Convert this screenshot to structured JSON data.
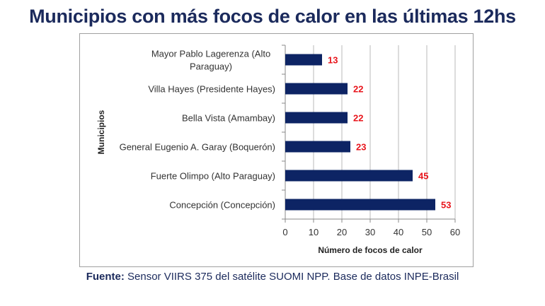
{
  "chart_data": {
    "type": "bar",
    "orientation": "horizontal",
    "title": "Municipios con más focos de calor en las últimas 12hs",
    "categories": [
      "Mayor Pablo Lagerenza (Alto Paraguay)",
      "Villa Hayes (Presidente Hayes)",
      "Bella Vista (Amambay)",
      "General Eugenio A. Garay (Boquerón)",
      "Fuerte Olimpo (Alto Paraguay)",
      "Concepción (Concepción)"
    ],
    "category_lines": [
      [
        "Mayor Pablo Lagerenza (Alto",
        "Paraguay)"
      ],
      [
        "Villa Hayes (Presidente Hayes)"
      ],
      [
        "Bella Vista (Amambay)"
      ],
      [
        "General Eugenio A. Garay (Boquerón)"
      ],
      [
        "Fuerte Olimpo (Alto Paraguay)"
      ],
      [
        "Concepción (Concepción)"
      ]
    ],
    "values": [
      13,
      22,
      22,
      23,
      45,
      53
    ],
    "xlabel": "Número de focos de calor",
    "ylabel": "Municipios",
    "xlim": [
      0,
      60
    ],
    "xticks": [
      0,
      10,
      20,
      30,
      40,
      50,
      60
    ],
    "grid": "vertical",
    "bar_color": "#0d2464",
    "label_color": "#e8141b"
  },
  "footer": {
    "label": "Fuente:",
    "text": " Sensor VIIRS 375 del satélite SUOMI NPP. Base de datos INPE-Brasil"
  }
}
